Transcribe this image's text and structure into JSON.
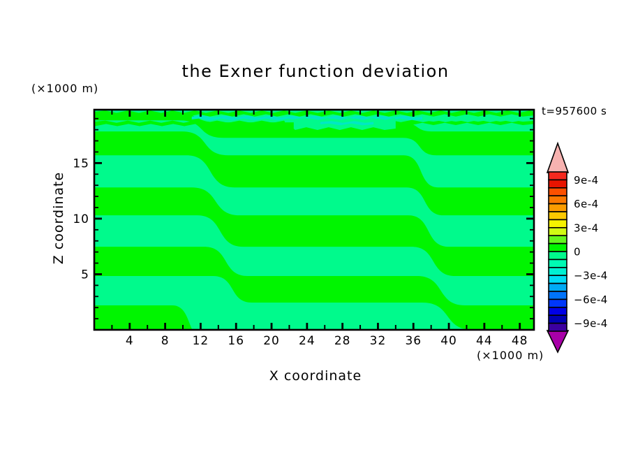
{
  "chart": {
    "title": "the Exner function deviation",
    "timestamp": "t=957600 s",
    "y_unit_label": "(×1000 m)",
    "x_unit_label": "(×1000 m)",
    "x_axis_label": "X coordinate",
    "y_axis_label": "Z coordinate"
  },
  "chart_data": {
    "type": "heatmap",
    "title": "the Exner function deviation",
    "xlabel": "X coordinate",
    "ylabel": "Z coordinate",
    "x_unit": "×1000 m",
    "y_unit": "×1000 m",
    "time_label": "t=957600 s",
    "xlim": [
      0,
      49.6
    ],
    "ylim": [
      0,
      19.8
    ],
    "x_major_ticks": [
      4,
      8,
      12,
      16,
      20,
      24,
      28,
      32,
      36,
      40,
      44,
      48
    ],
    "x_minor_step": 2,
    "y_major_ticks": [
      5,
      10,
      15
    ],
    "y_minor_step": 1,
    "grid": false,
    "levels": [
      -0.001,
      -0.0009,
      -0.0008,
      -0.0007,
      -0.0006,
      -0.0005,
      -0.0004,
      -0.0003,
      -0.0002,
      -0.0001,
      0,
      0.0001,
      0.0002,
      0.0003,
      0.0004,
      0.0005,
      0.0006,
      0.0007,
      0.0008,
      0.0009,
      0.001
    ],
    "field_colors": {
      "band_0_to_plus1e-4": "#00f500",
      "band_minus1e-4_to_0": "#00fa8c",
      "noise_accent": "#00e8c4"
    },
    "colorbar": {
      "position": "right",
      "segment_colors_top_to_bottom": [
        "#f5281e",
        "#e81400",
        "#fc5000",
        "#fc7800",
        "#fc9c00",
        "#fcc800",
        "#f6f200",
        "#d2fa14",
        "#64f51e",
        "#00f500",
        "#00fa8c",
        "#00fab4",
        "#00f0d2",
        "#00dcf5",
        "#00aaf5",
        "#0073fa",
        "#0037fa",
        "#0000e6",
        "#0000b4",
        "#3c00a0"
      ],
      "over_arrow_color": "#f7b2b0",
      "under_arrow_color": "#a800a8",
      "labels": [
        {
          "text": "9e-4",
          "boundary_index": 1
        },
        {
          "text": "6e-4",
          "boundary_index": 4
        },
        {
          "text": "3e-4",
          "boundary_index": 7
        },
        {
          "text": "0",
          "boundary_index": 10
        },
        {
          "text": "−3e-4",
          "boundary_index": 13
        },
        {
          "text": "−6e-4",
          "boundary_index": 16
        },
        {
          "text": "−9e-4",
          "boundary_index": 19
        }
      ]
    },
    "contour_boundaries_note": "Zero-contour staircase boundaries between the +0..1e-4 (green) and -1e-4..0 (spring green) bands; each boundary runs flat at zL from x=0, steps down to zM near x1 (width w1), runs flat, steps down to zR near x2 (width w2), then flat to x max. Units: km (×1000 m).",
    "contour_boundaries": [
      {
        "zL": 19.47,
        "zM": 18.66,
        "zR": 17.84,
        "x1": 9.3,
        "w1": 4.7,
        "x2": 34.6,
        "w2": 3.6
      },
      {
        "zL": 18.84,
        "zM": 17.27,
        "zR": 15.7,
        "x1": 9.6,
        "w1": 5.0,
        "x2": 34.8,
        "w2": 3.8
      },
      {
        "zL": 17.84,
        "zM": 15.7,
        "zR": 12.81,
        "x1": 9.9,
        "w1": 5.2,
        "x2": 34.9,
        "w2": 3.9
      },
      {
        "zL": 15.7,
        "zM": 12.81,
        "zR": 10.3,
        "x1": 10.4,
        "w1": 5.4,
        "x2": 35.2,
        "w2": 4.2
      },
      {
        "zL": 12.81,
        "zM": 10.3,
        "zR": 7.47,
        "x1": 11.0,
        "w1": 5.4,
        "x2": 35.4,
        "w2": 4.6
      },
      {
        "zL": 10.3,
        "zM": 7.47,
        "zR": 4.84,
        "x1": 11.6,
        "w1": 5.2,
        "x2": 35.8,
        "w2": 4.9
      },
      {
        "zL": 7.47,
        "zM": 4.84,
        "zR": 2.2,
        "x1": 12.4,
        "w1": 4.9,
        "x2": 36.4,
        "w2": 5.4
      },
      {
        "zL": 4.84,
        "zM": 2.45,
        "zR": 0.0,
        "x1": 13.4,
        "w1": 4.4,
        "x2": 37.0,
        "w2": 5.7
      },
      {
        "zL": 2.2,
        "zM": -1.0,
        "zR": -1.0,
        "x1": 8.8,
        "w1": 3.9,
        "x2": 37.0,
        "w2": 5.0
      }
    ],
    "noise_stripes": [
      {
        "x0": 0,
        "x1": 49.6,
        "z": 19.62,
        "th": 0.33,
        "amp": 0.1,
        "color": "green"
      },
      {
        "x0": 11,
        "x1": 37,
        "z": 19.18,
        "th": 0.26,
        "amp": 0.09,
        "color": "accent"
      },
      {
        "x0": 0,
        "x1": 21.5,
        "z": 18.72,
        "th": 0.3,
        "amp": 0.1,
        "color": "green"
      },
      {
        "x0": 24.5,
        "x1": 49.6,
        "z": 18.78,
        "th": 0.26,
        "amp": 0.1,
        "color": "green"
      },
      {
        "x0": 22.5,
        "x1": 34,
        "z": 18.95,
        "th": 0.85,
        "amp": 0.12,
        "color": "spring"
      },
      {
        "x0": 25.5,
        "x1": 31.5,
        "z": 18.7,
        "th": 0.22,
        "amp": 0.08,
        "color": "accent"
      },
      {
        "x0": 37.5,
        "x1": 49.6,
        "z": 19.02,
        "th": 0.22,
        "amp": 0.08,
        "color": "spring"
      }
    ]
  }
}
